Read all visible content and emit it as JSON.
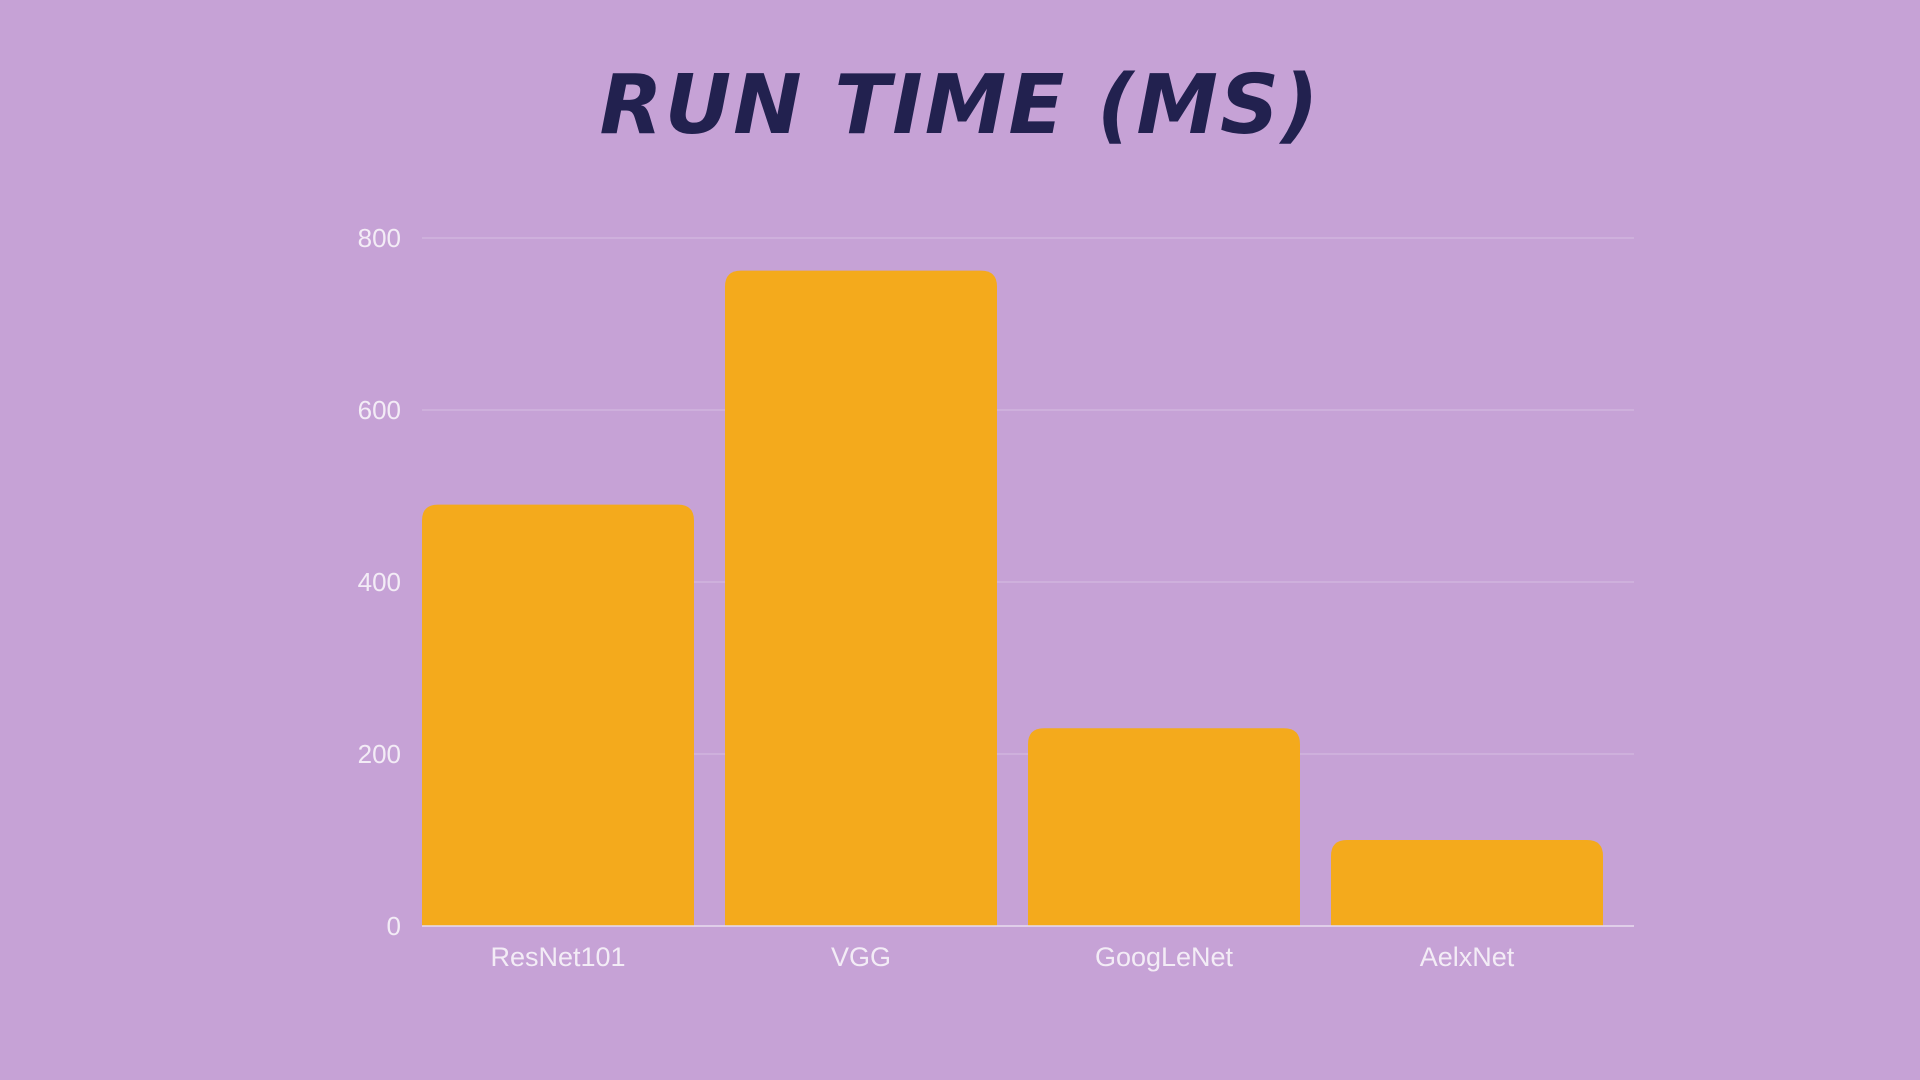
{
  "chart_data": {
    "type": "bar",
    "title": "Run Time (ms)",
    "categories": [
      "ResNet101",
      "VGG",
      "GoogLeNet",
      "AelxNet"
    ],
    "values": [
      490,
      762,
      230,
      100
    ],
    "ylim": [
      0,
      800
    ],
    "yticks": [
      0,
      200,
      400,
      600,
      800
    ],
    "xlabel": "",
    "ylabel": "",
    "grid": true,
    "legend": "none",
    "colors": {
      "background": "#c6a2d6",
      "bar": "#f4aa1c",
      "title": "#22214f",
      "text": "#f3ecf6",
      "grid": "#d7bde3"
    }
  }
}
